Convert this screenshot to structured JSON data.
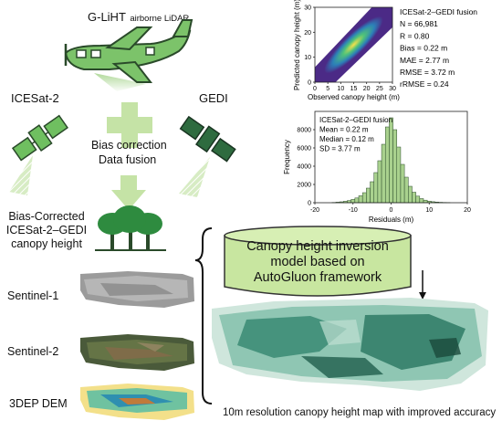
{
  "gliht_title": "G-LiHT",
  "gliht_sub": "airborne LiDAR",
  "icesat_label": "ICESat-2",
  "gedi_label": "GEDI",
  "bias_correction": "Bias correction",
  "data_fusion": "Data fusion",
  "bias_corrected_lines": [
    "Bias-Corrected",
    "ICESat-2–GEDI",
    "canopy height"
  ],
  "sentinel1": "Sentinel-1",
  "sentinel2": "Sentinel-2",
  "dem": "3DEP DEM",
  "model_lines": [
    "Canopy height inversion",
    "model based on",
    "AutoGluon framework"
  ],
  "output_caption": "10m resolution canopy height map with improved accuracy",
  "colors": {
    "icon_green": "#6fbf60",
    "icon_dark": "#2e6b3f",
    "cylinder": "#c8e6a0",
    "arrow_fill": "#c5e3a6",
    "bar_fill": "#a9d18e"
  },
  "chart_data": [
    {
      "type": "scatter",
      "title": "",
      "xlabel": "Observed canopy height (m)",
      "ylabel": "Predicted canopy height (m)",
      "xlim": [
        0,
        30
      ],
      "ylim": [
        0,
        30
      ],
      "xticks": [
        0,
        5,
        10,
        15,
        20,
        25,
        30
      ],
      "yticks": [
        0,
        10,
        20,
        30
      ],
      "stats": [
        "ICESat-2–GEDI fusion",
        "N = 66,981",
        "R = 0.80",
        "Bias = 0.22 m",
        "MAE = 2.77 m",
        "RMSE = 3.72 m",
        "rRMSE = 0.24"
      ]
    },
    {
      "type": "bar",
      "title": "",
      "xlabel": "Residuals (m)",
      "ylabel": "Frequency",
      "xlim": [
        -20,
        20
      ],
      "ylim": [
        0,
        10000
      ],
      "xticks": [
        -20,
        -10,
        0,
        10,
        20
      ],
      "yticks": [
        0,
        2000,
        4000,
        6000,
        8000
      ],
      "bin_width": 1,
      "bins": [
        -15,
        -14,
        -13,
        -12,
        -11,
        -10,
        -9,
        -8,
        -7,
        -6,
        -5,
        -4,
        -3,
        -2,
        -1,
        0,
        1,
        2,
        3,
        4,
        5,
        6,
        7,
        8,
        9,
        10,
        11,
        12,
        13,
        14,
        15
      ],
      "values": [
        30,
        60,
        100,
        160,
        240,
        360,
        520,
        760,
        1100,
        1600,
        2300,
        3300,
        4600,
        6400,
        8300,
        9300,
        8000,
        6100,
        4200,
        2800,
        1800,
        1150,
        720,
        450,
        280,
        170,
        110,
        70,
        45,
        30,
        20
      ],
      "stats": [
        "ICESat-2–GEDI fusion",
        "Mean = 0.22 m",
        "Median = 0.12 m",
        "SD = 3.77 m"
      ]
    }
  ]
}
